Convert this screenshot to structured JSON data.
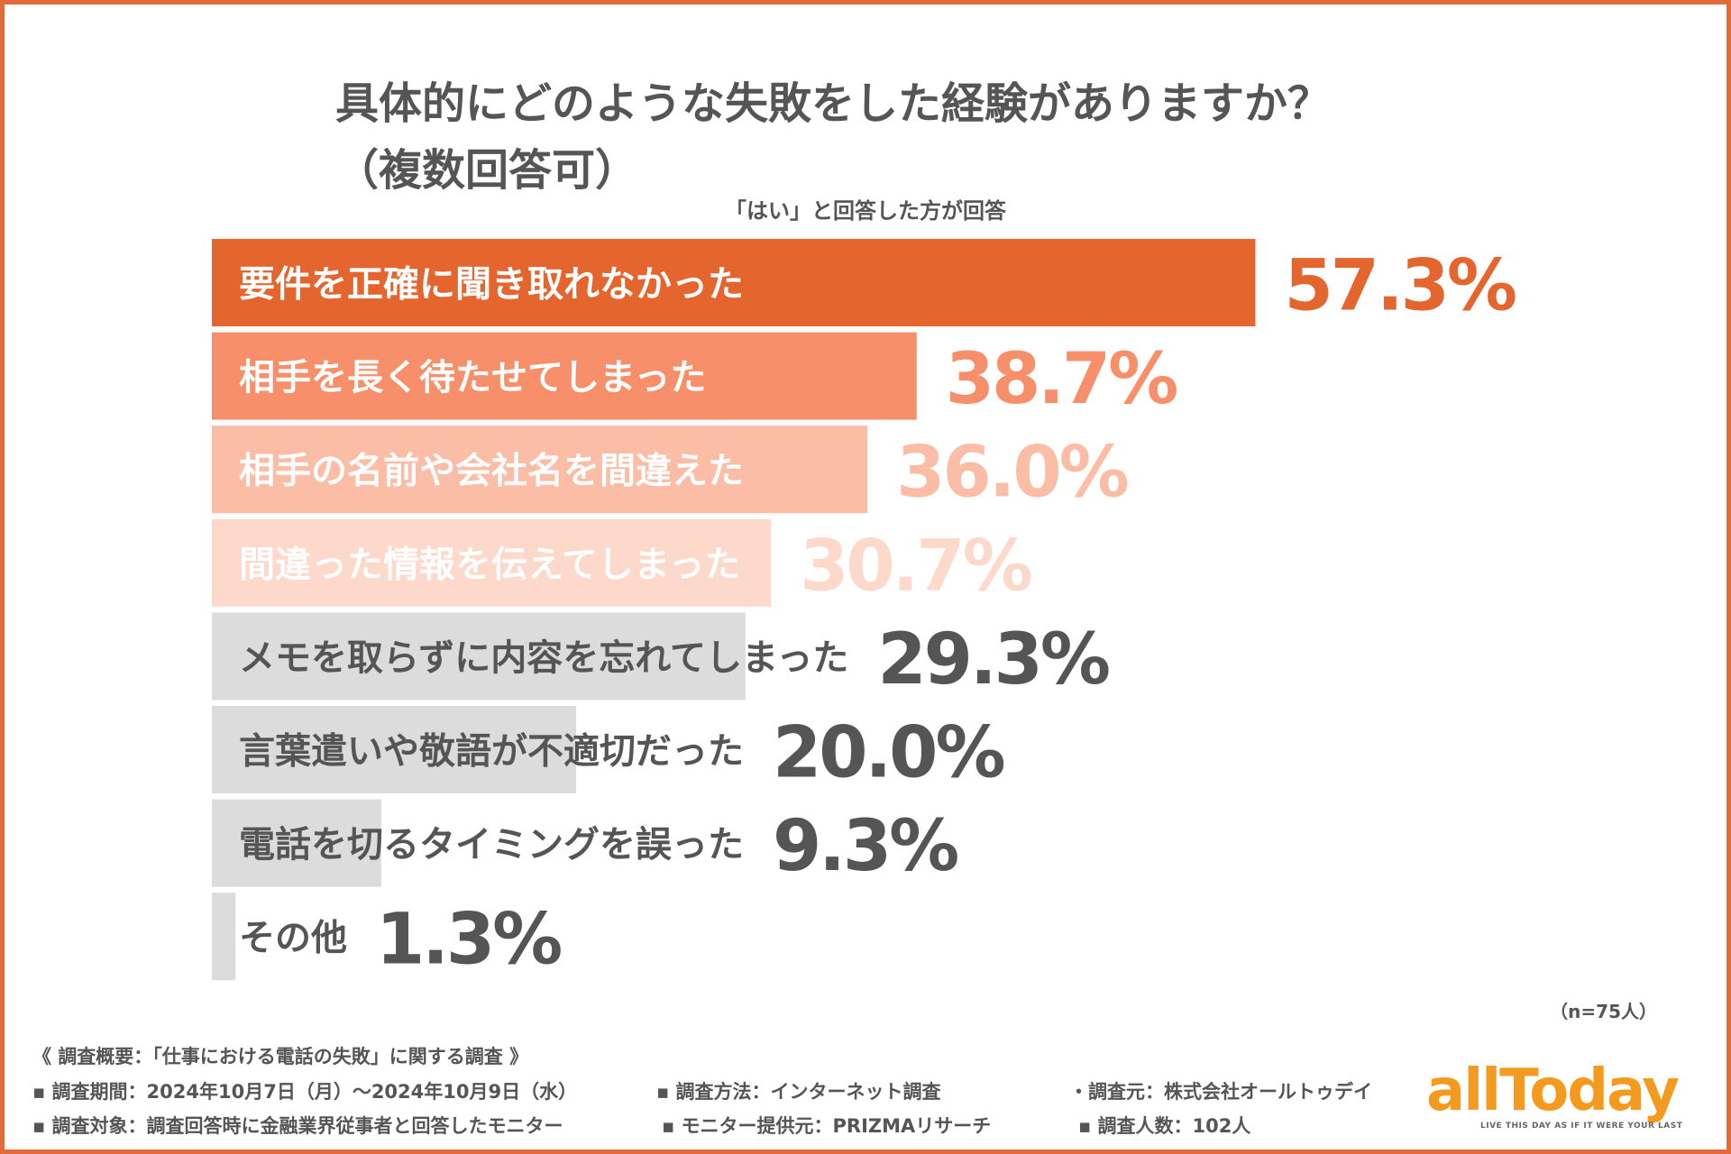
{
  "title": {
    "line1": "具体的にどのような失敗をした経験がありますか？",
    "line2": "（複数回答可）"
  },
  "subtitle": "「はい」と回答した方が回答",
  "colors": {
    "frame": "#e36a3a",
    "bar_fills": [
      "#e5652f",
      "#f7906a",
      "#fbbda6",
      "#fdd9cb",
      "#dcdcdc",
      "#dcdcdc",
      "#dcdcdc",
      "#dcdcdc"
    ],
    "value_colors": [
      "#e5652f",
      "#f7906a",
      "#fbbda6",
      "#fdd9cb",
      "#555555",
      "#555555",
      "#555555",
      "#555555"
    ],
    "label_colors": [
      "#ffffff",
      "#ffffff",
      "#ffffff",
      "#ffffff",
      "#555555",
      "#555555",
      "#555555",
      "#555555"
    ]
  },
  "chart_data": {
    "type": "bar",
    "orientation": "horizontal",
    "categories": [
      "要件を正確に聞き取れなかった",
      "相手を長く待たせてしまった",
      "相手の名前や会社名を間違えた",
      "間違った情報を伝えてしまった",
      "メモを取らずに内容を忘れてしまった",
      "言葉遣いや敬語が不適切だった",
      "電話を切るタイミングを誤った",
      "その他"
    ],
    "values": [
      57.3,
      38.7,
      36.0,
      30.7,
      29.3,
      20.0,
      9.3,
      1.3
    ],
    "value_labels": [
      "57.3%",
      "38.7%",
      "36.0%",
      "30.7%",
      "29.3%",
      "20.0%",
      "9.3%",
      "1.3%"
    ],
    "unit": "%",
    "xlim": [
      0,
      100
    ],
    "grid": false
  },
  "n_label": "（n=75人）",
  "footer": {
    "survey_title": "《 調査概要：「仕事における電話の失敗」に関する調査 》",
    "period": "▪ 調査期間：2024年10月7日（月）〜2024年10月9日（水）",
    "method": "▪ 調査方法：インターネット調査",
    "organizer": "・調査元：株式会社オールトゥデイ",
    "target": "▪ 調査対象：調査回答時に金融業界従事者と回答したモニター",
    "provider": "▪ モニター提供元：PRIZMAリサーチ",
    "respondents": "▪ 調査人数：102人"
  },
  "logo": {
    "text": "allToday",
    "tagline": "LIVE THIS DAY AS IF IT WERE YOUR LAST"
  }
}
